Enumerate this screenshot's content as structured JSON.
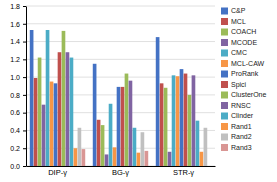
{
  "chart_data": {
    "type": "bar",
    "categories": [
      "DIP-γ",
      "BG-γ",
      "STR-γ"
    ],
    "series": [
      {
        "name": "C&P",
        "color": "#4472C4",
        "values": [
          1.53,
          1.15,
          1.45
        ]
      },
      {
        "name": "MCL",
        "color": "#C0504D",
        "values": [
          0.99,
          0.52,
          0.93
        ]
      },
      {
        "name": "COACH",
        "color": "#9BBB59",
        "values": [
          1.22,
          0.46,
          0.88
        ]
      },
      {
        "name": "MCODE",
        "color": "#8064A2",
        "values": [
          0.69,
          0.13,
          0.16
        ]
      },
      {
        "name": "CMC",
        "color": "#4BACC6",
        "values": [
          1.53,
          0.7,
          1.02
        ]
      },
      {
        "name": "MCL-CAW",
        "color": "#F79646",
        "values": [
          0.95,
          0.21,
          1.01
        ]
      },
      {
        "name": "ProRank",
        "color": "#4472C4",
        "values": [
          0.93,
          0.89,
          1.09
        ]
      },
      {
        "name": "Spici",
        "color": "#C0504D",
        "values": [
          1.28,
          0.89,
          1.04
        ]
      },
      {
        "name": "ClusterOne",
        "color": "#9BBB59",
        "values": [
          1.52,
          1.04,
          0.8
        ]
      },
      {
        "name": "RNSC",
        "color": "#8064A2",
        "values": [
          1.28,
          0.96,
          1.02
        ]
      },
      {
        "name": "Clinder",
        "color": "#4BACC6",
        "values": [
          1.22,
          0.43,
          0.51
        ]
      },
      {
        "name": "Rand1",
        "color": "#F79646",
        "values": [
          0.2,
          0.15,
          0.16
        ]
      },
      {
        "name": "Rand2",
        "color": "#C0C0C0",
        "values": [
          0.43,
          0.38,
          0.43
        ]
      },
      {
        "name": "Rand3",
        "color": "#D99694",
        "values": [
          0.19,
          0.17,
          0.0
        ]
      }
    ],
    "ylim": [
      0,
      1.8
    ],
    "yticks": [
      {
        "value": 0,
        "label": "0.0"
      },
      0.2,
      0.4,
      0.6,
      0.8,
      {
        "value": 1.0,
        "label": "1.0"
      },
      1.2,
      1.4,
      1.6,
      1.8
    ],
    "grid": true,
    "legend": "upper right"
  }
}
